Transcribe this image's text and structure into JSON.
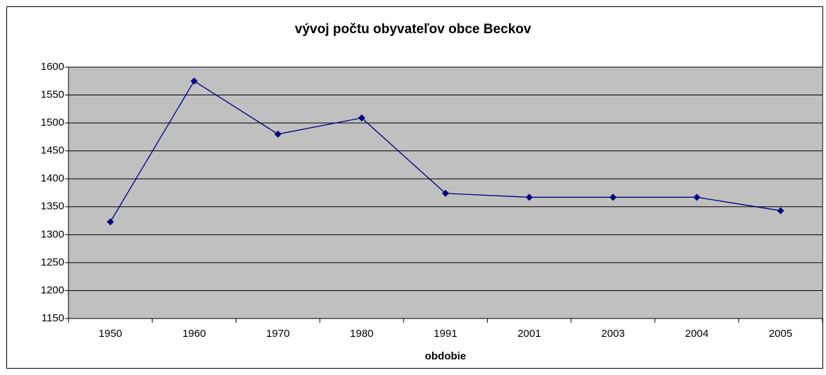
{
  "chart_data": {
    "type": "line",
    "title": "vývoj počtu obyvateľov obce Beckov",
    "x_label": "obdobie",
    "categories": [
      "1950",
      "1960",
      "1970",
      "1980",
      "1991",
      "2001",
      "2003",
      "2004",
      "2005"
    ],
    "series": [
      {
        "name": "Beckov",
        "color": "#000080",
        "values": [
          1323,
          1575,
          1480,
          1509,
          1374,
          1367,
          1367,
          1367,
          1343
        ]
      }
    ],
    "ylim": [
      1150,
      1600
    ],
    "yticks": [
      1150,
      1200,
      1250,
      1300,
      1350,
      1400,
      1450,
      1500,
      1550,
      1600
    ],
    "grid": true,
    "plot_background": "#c0c0c0"
  }
}
